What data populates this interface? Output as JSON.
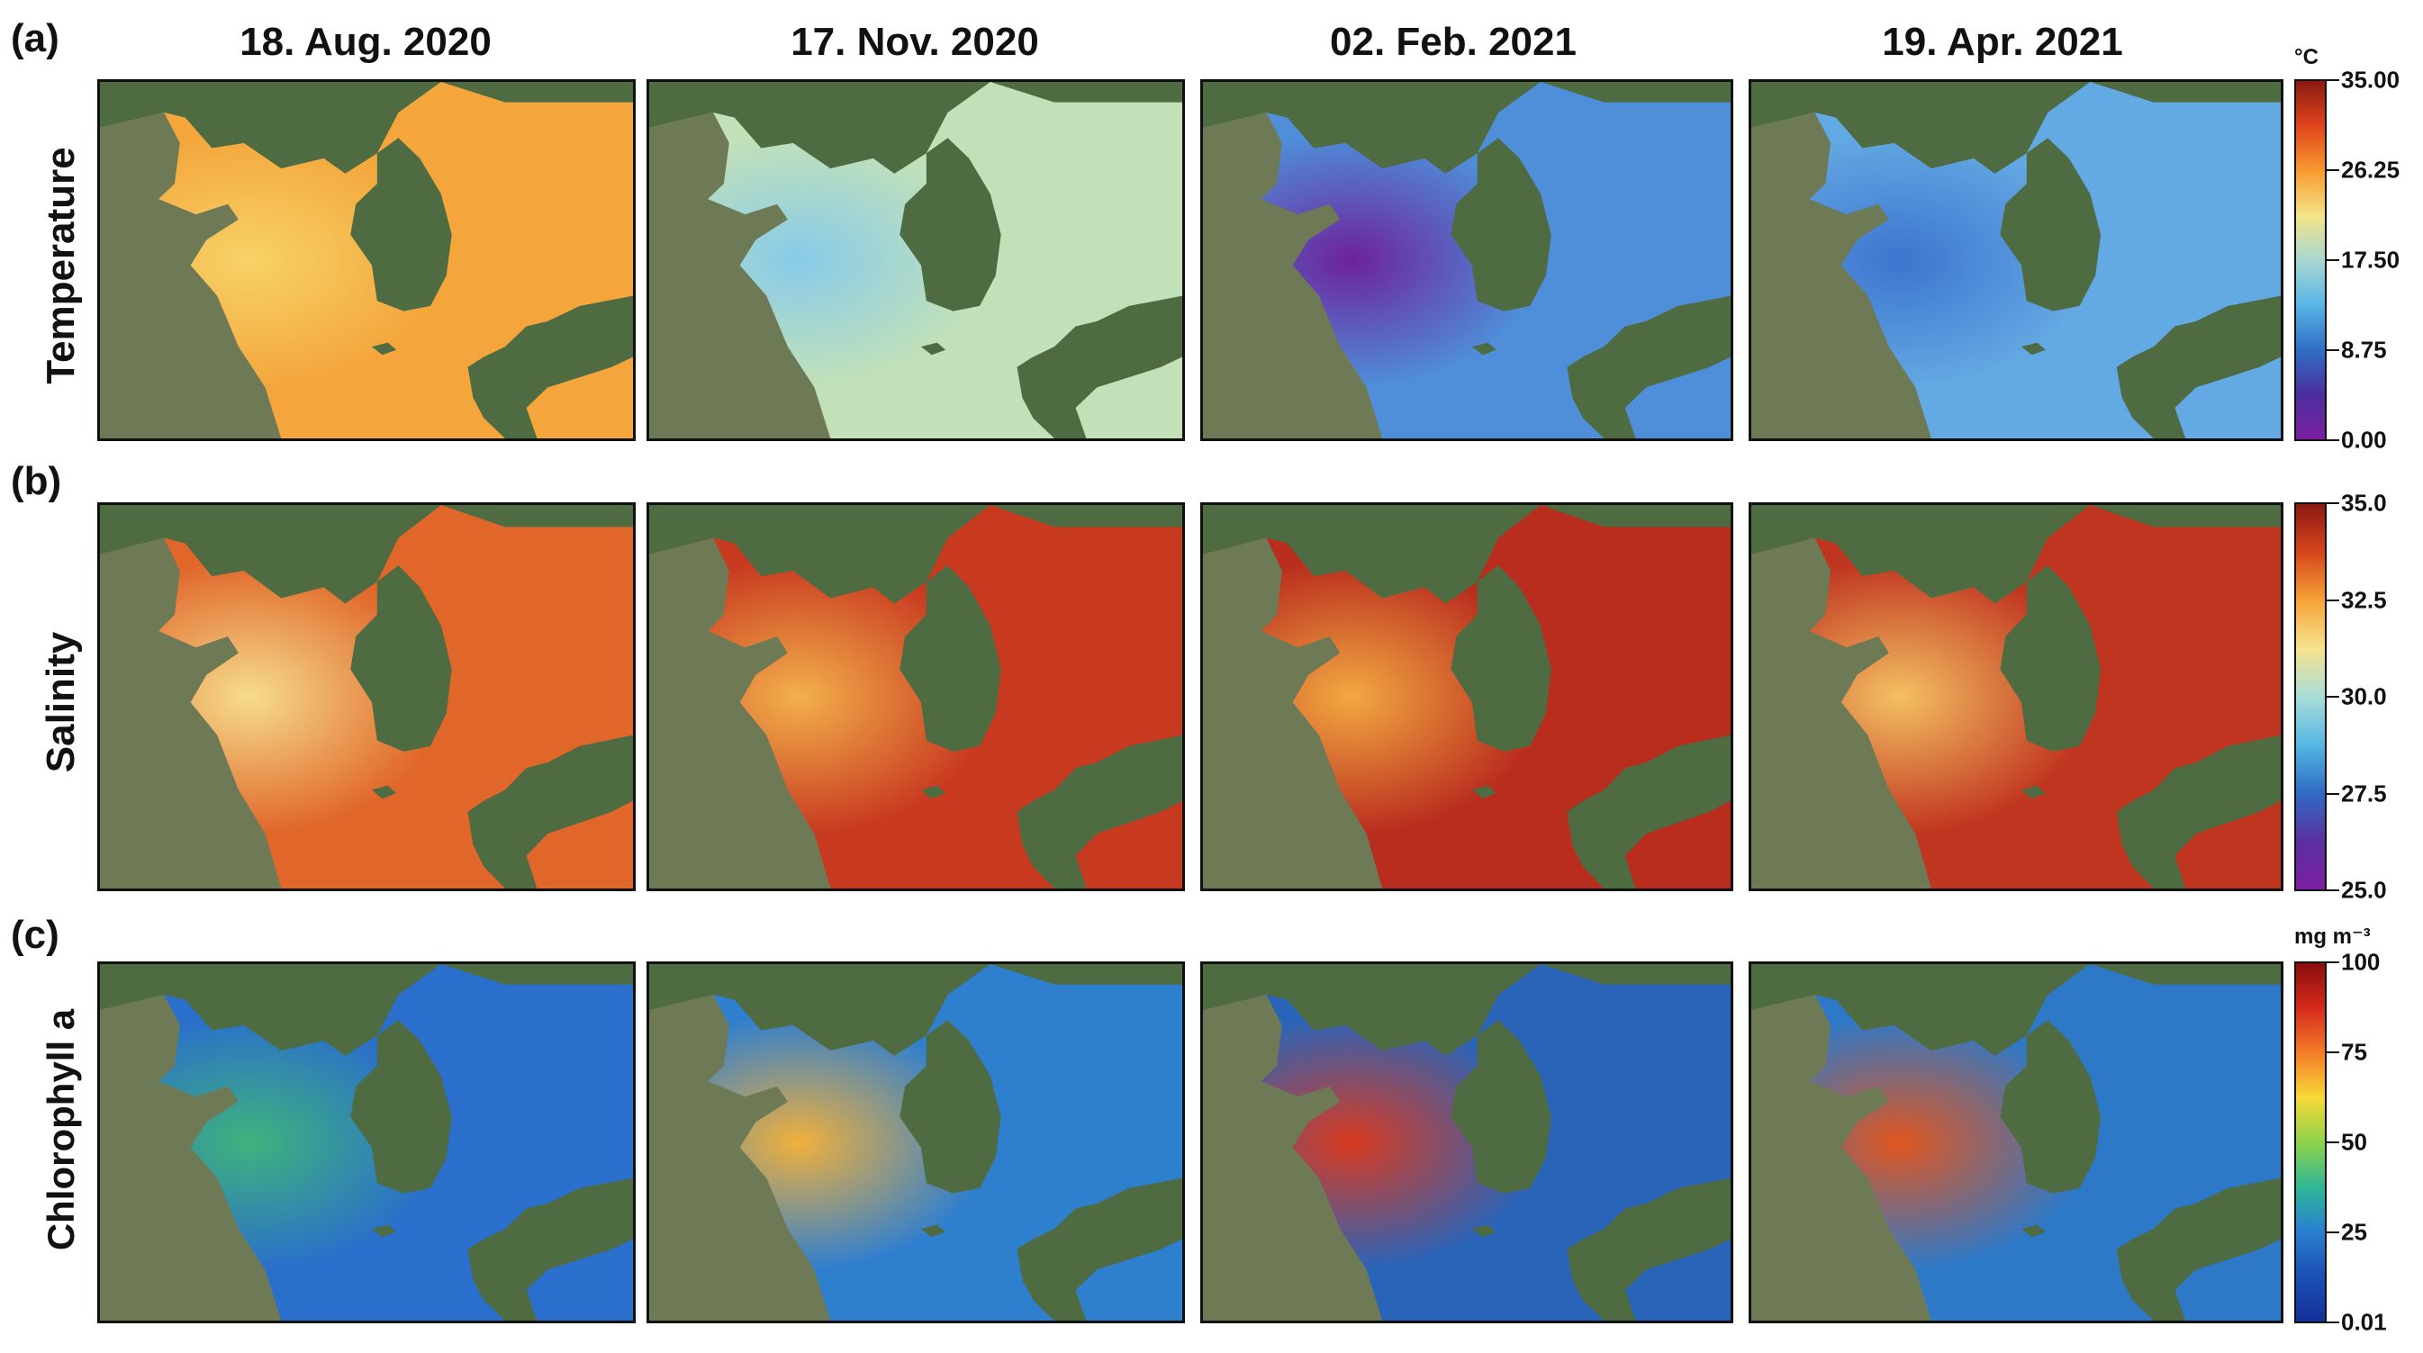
{
  "panel_labels": [
    "(a)",
    "(b)",
    "(c)"
  ],
  "dates": [
    "18. Aug. 2020",
    "17. Nov. 2020",
    "02. Feb. 2021",
    "19. Apr. 2021"
  ],
  "rows": [
    {
      "name": "Temperature",
      "unit": "°C",
      "ticks": [
        "35.00",
        "26.25",
        "17.50",
        "8.75",
        "0.00"
      ],
      "gradient": [
        "#8b1a12",
        "#e0441c",
        "#f79a2f",
        "#f3e487",
        "#a9d7d2",
        "#5ab4e6",
        "#2f6fc4",
        "#4b2f9f",
        "#7b1fa2"
      ],
      "sea_colors": [
        "#f4a63c",
        "#c3e1b8",
        "#4f8fd9",
        "#63a9e3"
      ],
      "coast_colors": [
        "#f7d267",
        "#87cbe9",
        "#6d229b",
        "#3d74cf"
      ]
    },
    {
      "name": "Salinity",
      "unit": "",
      "ticks": [
        "35.0",
        "32.5",
        "30.0",
        "27.5",
        "25.0"
      ],
      "gradient": [
        "#8b1a12",
        "#d6451c",
        "#f6a336",
        "#f5e38f",
        "#a9ddd7",
        "#55b7e4",
        "#2f6bc4",
        "#5a2fa0",
        "#7b1fa2"
      ],
      "sea_colors": [
        "#e0662a",
        "#c83a20",
        "#b92d1e",
        "#c03520"
      ],
      "coast_colors": [
        "#f6dd8c",
        "#f3b04c",
        "#f3a842",
        "#f4c062"
      ]
    },
    {
      "name": "Chlorophyll a",
      "unit": "mg m⁻³",
      "ticks": [
        "100",
        "75",
        "50",
        "25",
        "0.01"
      ],
      "gradient": [
        "#8b0d0d",
        "#d42a1c",
        "#f47c27",
        "#f7d93a",
        "#8ed24a",
        "#2fb796",
        "#2a7fd1",
        "#1b4fb3",
        "#14309a"
      ],
      "sea_colors": [
        "#2a6fcb",
        "#2f7fcf",
        "#2a64b9",
        "#2d79c8"
      ],
      "coast_colors": [
        "#3fb37c",
        "#f0b03c",
        "#d83a1f",
        "#e0561f"
      ]
    }
  ]
}
